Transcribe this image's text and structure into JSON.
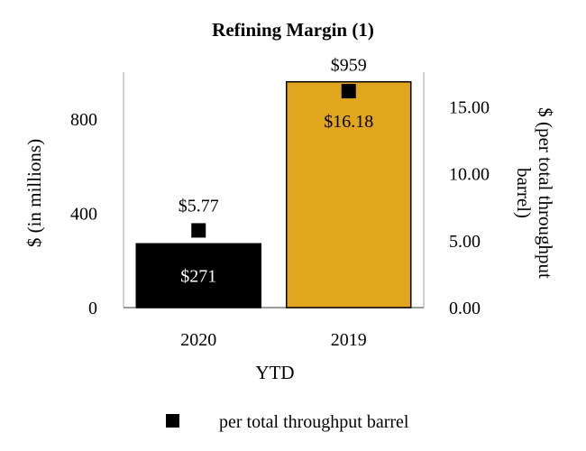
{
  "chart_data": {
    "type": "bar",
    "title": "Refining Margin (1)",
    "xlabel": "YTD",
    "ylabel": "$ (in millions)",
    "y2label_line1": "$ (per total throughput",
    "y2label_line2": "barrel)",
    "categories": [
      "2020",
      "2019"
    ],
    "series": [
      {
        "name": "Refining Margin",
        "axis": "left",
        "kind": "bar",
        "values": [
          271,
          959
        ],
        "labels": [
          "$271",
          "$959"
        ],
        "colors": [
          "#000000",
          "#E1A61E"
        ]
      },
      {
        "name": "per total throughput barrel",
        "axis": "right",
        "kind": "marker",
        "values": [
          5.77,
          16.18
        ],
        "labels": [
          "$5.77",
          "$16.18"
        ],
        "color": "#000000"
      }
    ],
    "ylim": [
      0,
      1000
    ],
    "yticks": [
      0,
      400,
      800
    ],
    "ytick_labels": [
      "0",
      "400",
      "800"
    ],
    "y2lim": [
      0,
      17.6
    ],
    "y2ticks": [
      0,
      5,
      10,
      15
    ],
    "y2tick_labels": [
      "0.00",
      "5.00",
      "10.00",
      "15.00"
    ],
    "legend": {
      "position": "bottom",
      "entries": [
        "per total throughput barrel"
      ]
    },
    "grid": false
  }
}
